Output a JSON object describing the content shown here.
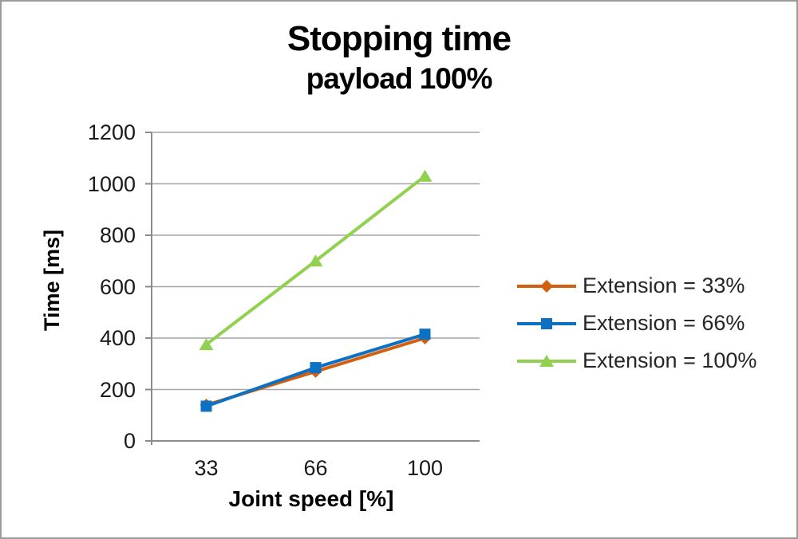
{
  "title": "Stopping time",
  "subtitle": "payload 100%",
  "chart_data": {
    "type": "line",
    "title": "Stopping time",
    "subtitle": "payload 100%",
    "xlabel": "Joint speed [%]",
    "ylabel": "Time [ms]",
    "x": [
      33,
      66,
      100
    ],
    "xtick_labels": [
      "33",
      "66",
      "100"
    ],
    "ylim": [
      0,
      1200
    ],
    "yticks": [
      0,
      200,
      400,
      600,
      800,
      1000,
      1200
    ],
    "grid": true,
    "legend_position": "right",
    "series": [
      {
        "name": "Extension = 33%",
        "marker": "diamond",
        "color": "#d2600e",
        "values": [
          140,
          270,
          400
        ]
      },
      {
        "name": "Extension = 66%",
        "marker": "square",
        "color": "#0c71c3",
        "values": [
          135,
          285,
          415
        ]
      },
      {
        "name": "Extension = 100%",
        "marker": "triangle",
        "color": "#92d050",
        "values": [
          375,
          700,
          1030
        ]
      }
    ]
  },
  "colors": {
    "gridline": "#a6a6a6",
    "axis": "#8c8c8c",
    "tick_text": "#1a1a1a",
    "legend_text": "#262626",
    "border": "#9b9b9b"
  }
}
